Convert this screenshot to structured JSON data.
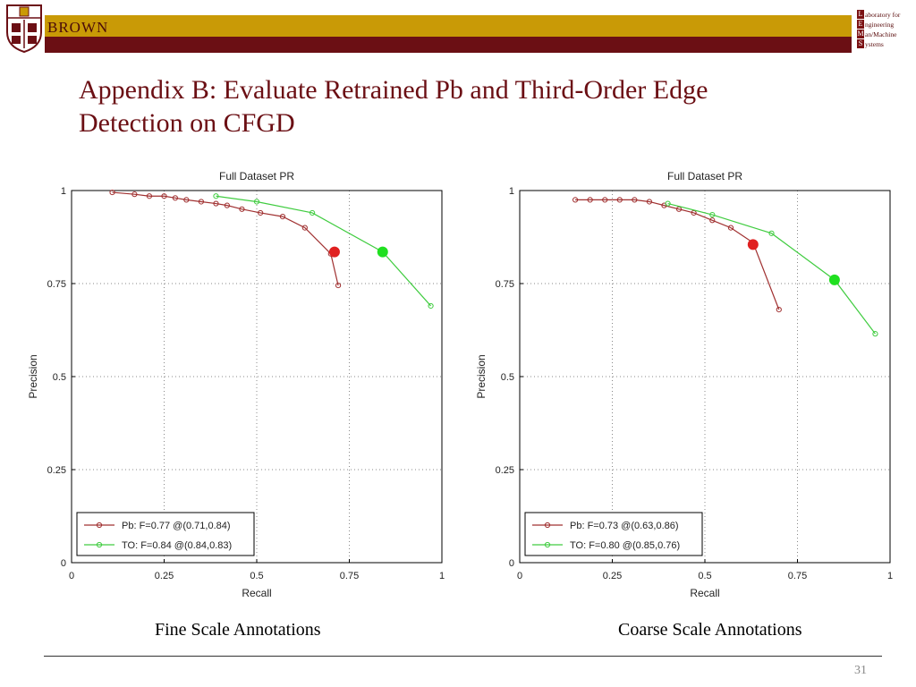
{
  "header": {
    "brand": "BROWN",
    "colors": {
      "gold": "#c99a06",
      "maroon": "#6b0f14"
    },
    "lab_lines": [
      {
        "initial": "L",
        "rest": "aboratory for"
      },
      {
        "initial": "E",
        "rest": "ngineering"
      },
      {
        "initial": "M",
        "rest": "an/Machine"
      },
      {
        "initial": "S",
        "rest": "ystems"
      }
    ]
  },
  "slide": {
    "title_line1": "Appendix B: Evaluate Retrained Pb and Third-Order Edge",
    "title_line2": "Detection on CFGD",
    "page_number": "31"
  },
  "captions": {
    "left": "Fine Scale Annotations",
    "right": "Coarse Scale Annotations"
  },
  "chart_data": [
    {
      "type": "line",
      "title": "Full Dataset PR",
      "xlabel": "Recall",
      "ylabel": "Precision",
      "xlim": [
        0,
        1
      ],
      "ylim": [
        0,
        1
      ],
      "xticks": [
        "0",
        "0.25",
        "0.5",
        "0.75",
        "1"
      ],
      "yticks": [
        "0",
        "0.25",
        "0.5",
        "0.75",
        "1"
      ],
      "grid": true,
      "legend_position": "bottom-left",
      "series": [
        {
          "name": "Pb: F=0.77 @(0.71,0.84)",
          "color": "#a03030",
          "x": [
            0.11,
            0.17,
            0.21,
            0.25,
            0.28,
            0.31,
            0.35,
            0.39,
            0.42,
            0.46,
            0.51,
            0.57,
            0.63,
            0.7,
            0.72
          ],
          "y": [
            0.995,
            0.99,
            0.985,
            0.985,
            0.98,
            0.975,
            0.97,
            0.965,
            0.96,
            0.95,
            0.94,
            0.93,
            0.9,
            0.83,
            0.745
          ],
          "best": {
            "x": 0.71,
            "y": 0.835,
            "color": "#e02020"
          }
        },
        {
          "name": "TO: F=0.84 @(0.84,0.83)",
          "color": "#40cc40",
          "x": [
            0.39,
            0.5,
            0.65,
            0.84,
            0.97
          ],
          "y": [
            0.985,
            0.97,
            0.94,
            0.835,
            0.69
          ],
          "best": {
            "x": 0.84,
            "y": 0.835,
            "color": "#20e020"
          }
        }
      ]
    },
    {
      "type": "line",
      "title": "Full Dataset PR",
      "xlabel": "Recall",
      "ylabel": "Precision",
      "xlim": [
        0,
        1
      ],
      "ylim": [
        0,
        1
      ],
      "xticks": [
        "0",
        "0.25",
        "0.5",
        "0.75",
        "1"
      ],
      "yticks": [
        "0",
        "0.25",
        "0.5",
        "0.75",
        "1"
      ],
      "grid": true,
      "legend_position": "bottom-left",
      "series": [
        {
          "name": "Pb: F=0.73 @(0.63,0.86)",
          "color": "#a03030",
          "x": [
            0.15,
            0.19,
            0.23,
            0.27,
            0.31,
            0.35,
            0.39,
            0.43,
            0.47,
            0.52,
            0.57,
            0.63,
            0.7
          ],
          "y": [
            0.975,
            0.975,
            0.975,
            0.975,
            0.975,
            0.97,
            0.96,
            0.95,
            0.94,
            0.92,
            0.9,
            0.86,
            0.68
          ],
          "best": {
            "x": 0.63,
            "y": 0.855,
            "color": "#e02020"
          }
        },
        {
          "name": "TO: F=0.80 @(0.85,0.76)",
          "color": "#40cc40",
          "x": [
            0.4,
            0.52,
            0.68,
            0.85,
            0.96
          ],
          "y": [
            0.965,
            0.935,
            0.885,
            0.76,
            0.615
          ],
          "best": {
            "x": 0.85,
            "y": 0.76,
            "color": "#20e020"
          }
        }
      ]
    }
  ]
}
